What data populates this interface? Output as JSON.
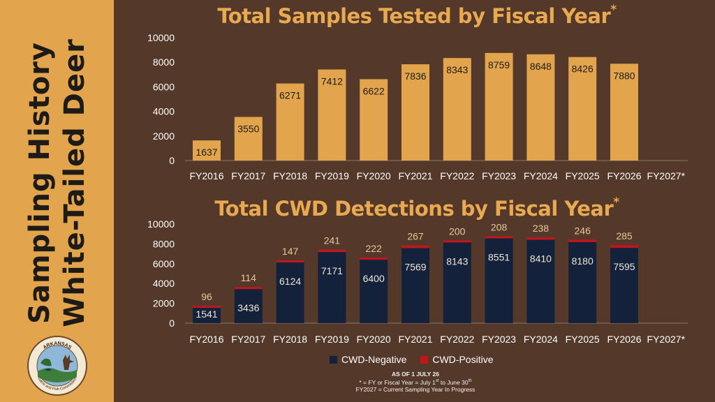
{
  "sidebar": {
    "title_line1": "Sampling History",
    "title_line2": "White-Tailed Deer",
    "logo_text_top": "ARKANSAS",
    "logo_text_bottom": "Game and Fish Commission"
  },
  "colors": {
    "background": "#54382a",
    "sidebar": "#e2a54d",
    "bar_total": "#e2a54d",
    "cwd_negative": "#13213b",
    "cwd_positive": "#c0161c",
    "title": "#e8a951"
  },
  "legend": {
    "negative_label": "CWD-Negative",
    "positive_label": "CWD-Positive"
  },
  "notes": {
    "as_of": "AS OF 1 JULY 26",
    "fy_definition": "* = FY or Fiscal Year = July 1st to June 30th",
    "fy_current": "FY2027 = Current Sampling Year In Progress"
  },
  "chart_data": [
    {
      "type": "bar",
      "title": "Total Samples Tested by Fiscal Year*",
      "categories": [
        "FY2016",
        "FY2017",
        "FY2018",
        "FY2019",
        "FY2020",
        "FY2021",
        "FY2022",
        "FY2023",
        "FY2024",
        "FY2025",
        "FY2026",
        "FY2027*"
      ],
      "values": [
        1637,
        3550,
        6271,
        7412,
        6622,
        7836,
        8343,
        8759,
        8648,
        8426,
        7880,
        null
      ],
      "yticks": [
        0,
        2000,
        4000,
        6000,
        8000,
        10000
      ],
      "ylim": [
        0,
        10000
      ],
      "grid": false
    },
    {
      "type": "bar",
      "stacked": true,
      "title": "Total CWD Detections by Fiscal Year*",
      "categories": [
        "FY2016",
        "FY2017",
        "FY2018",
        "FY2019",
        "FY2020",
        "FY2021",
        "FY2022",
        "FY2023",
        "FY2024",
        "FY2025",
        "FY2026",
        "FY2027*"
      ],
      "series": [
        {
          "name": "CWD-Negative",
          "values": [
            1541,
            3436,
            6124,
            7171,
            6400,
            7569,
            8143,
            8551,
            8410,
            8180,
            7595,
            null
          ]
        },
        {
          "name": "CWD-Positive",
          "values": [
            96,
            114,
            147,
            241,
            222,
            267,
            200,
            208,
            238,
            246,
            285,
            null
          ]
        }
      ],
      "yticks": [
        0,
        2000,
        4000,
        6000,
        8000,
        10000
      ],
      "ylim": [
        0,
        10000
      ],
      "legend": "bottom",
      "grid": false
    }
  ]
}
